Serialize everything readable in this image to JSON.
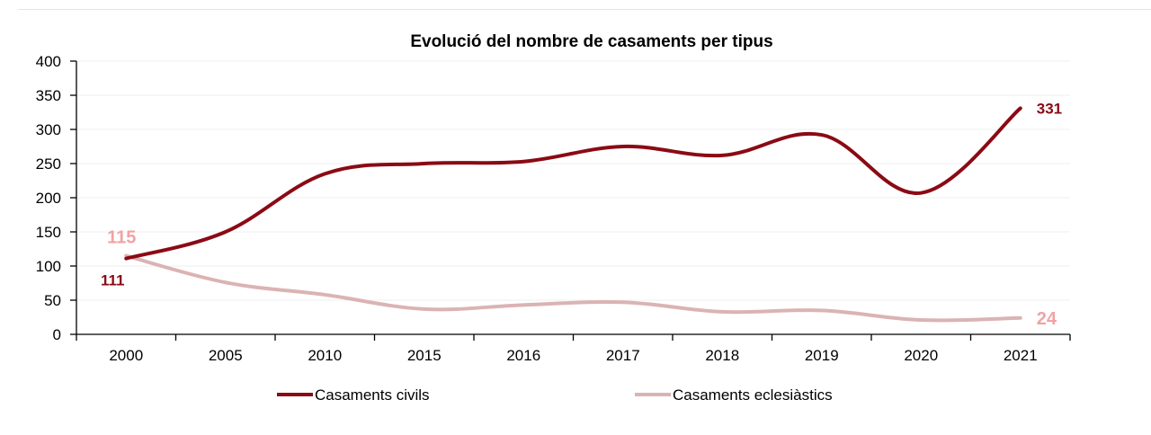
{
  "chart_data": {
    "type": "line",
    "title": "Evolució del nombre de casaments per tipus",
    "xlabel": "",
    "ylabel": "",
    "categories": [
      "2000",
      "2005",
      "2010",
      "2015",
      "2016",
      "2017",
      "2018",
      "2019",
      "2020",
      "2021"
    ],
    "ylim": [
      0,
      400
    ],
    "yticks": [
      0,
      50,
      100,
      150,
      200,
      250,
      300,
      350,
      400
    ],
    "grid": true,
    "legend": "bottom",
    "series": [
      {
        "name": "Casaments civils",
        "color": "#8b0a14",
        "values": [
          111,
          150,
          235,
          250,
          253,
          275,
          262,
          292,
          207,
          331
        ],
        "labels": [
          {
            "index": 0,
            "text": "111"
          },
          {
            "index": 9,
            "text": "331"
          }
        ]
      },
      {
        "name": "Casaments eclesiàstics",
        "color": "#dbb3b3",
        "values": [
          115,
          76,
          58,
          37,
          43,
          47,
          33,
          35,
          21,
          24
        ],
        "labels": [
          {
            "index": 0,
            "text": "115"
          },
          {
            "index": 9,
            "text": "24"
          }
        ]
      }
    ],
    "label_colors": {
      "civil": "#8b0a14",
      "eclesiastic": "#f0a3a3"
    }
  }
}
